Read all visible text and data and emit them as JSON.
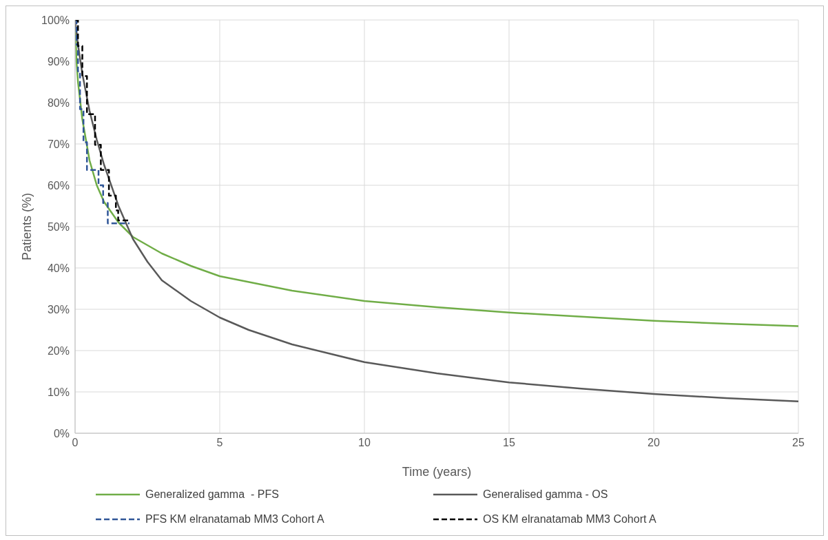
{
  "chart_data": {
    "type": "line",
    "xlabel": "Time (years)",
    "ylabel": "Patients (%)",
    "xlim": [
      0,
      25
    ],
    "xticks": [
      0,
      5,
      10,
      15,
      20,
      25
    ],
    "ylim": [
      0,
      100
    ],
    "yticks": [
      {
        "value": 0,
        "label": "0%"
      },
      {
        "value": 10,
        "label": "10%"
      },
      {
        "value": 20,
        "label": "20%"
      },
      {
        "value": 30,
        "label": "30%"
      },
      {
        "value": 40,
        "label": "40%"
      },
      {
        "value": 50,
        "label": "50%"
      },
      {
        "value": 60,
        "label": "60%"
      },
      {
        "value": 70,
        "label": "70%"
      },
      {
        "value": 80,
        "label": "80%"
      },
      {
        "value": 90,
        "label": "90%"
      },
      {
        "value": 100,
        "label": "100%"
      }
    ],
    "grid": true,
    "legend": "bottom",
    "marker": "none",
    "series": [
      {
        "name": "Generalized gamma  - PFS",
        "color": "#70ad47",
        "line_style": "solid",
        "x": [
          0,
          0.05,
          0.1,
          0.25,
          0.5,
          0.75,
          1,
          1.5,
          2,
          3,
          4,
          5,
          7.5,
          10,
          12.5,
          15,
          17.5,
          20,
          22.5,
          25
        ],
        "values": [
          100,
          90,
          85,
          76,
          66,
          60,
          56,
          51,
          47.5,
          43.5,
          40.5,
          38,
          34.5,
          32,
          30.5,
          29.2,
          28.2,
          27.2,
          26.5,
          25.9
        ]
      },
      {
        "name": "Generalised gamma - OS",
        "color": "#595959",
        "line_style": "solid",
        "x": [
          0,
          0.1,
          0.25,
          0.5,
          0.75,
          1,
          1.5,
          2,
          2.5,
          3,
          4,
          5,
          6,
          7.5,
          10,
          12.5,
          15,
          17.5,
          20,
          22.5,
          25
        ],
        "values": [
          100,
          94,
          87,
          78,
          71,
          65,
          55,
          47,
          41.5,
          37,
          32,
          28,
          25,
          21.5,
          17.2,
          14.5,
          12.3,
          10.8,
          9.5,
          8.5,
          7.7
        ]
      },
      {
        "name": "PFS KM elranatamab MM3 Cohort A",
        "type": "step",
        "color": "#2f5597",
        "line_style": "dashed",
        "x": [
          0,
          0.05,
          0.1,
          0.17,
          0.29,
          0.41,
          0.69,
          0.81,
          0.97,
          1.13,
          1.88
        ],
        "values": [
          100,
          94,
          87.6,
          78.4,
          70.4,
          63.7,
          63.7,
          60,
          55.7,
          50.8,
          50.8
        ]
      },
      {
        "name": "OS KM elranatamab MM3 Cohort A",
        "type": "step",
        "color": "#000000",
        "line_style": "dashed",
        "x": [
          0,
          0.1,
          0.25,
          0.41,
          0.69,
          0.89,
          1.17,
          1.41,
          1.49,
          1.88
        ],
        "values": [
          100,
          93.7,
          86.4,
          77.2,
          69.8,
          63.7,
          57.5,
          53.9,
          51.5,
          51.5
        ]
      }
    ]
  }
}
